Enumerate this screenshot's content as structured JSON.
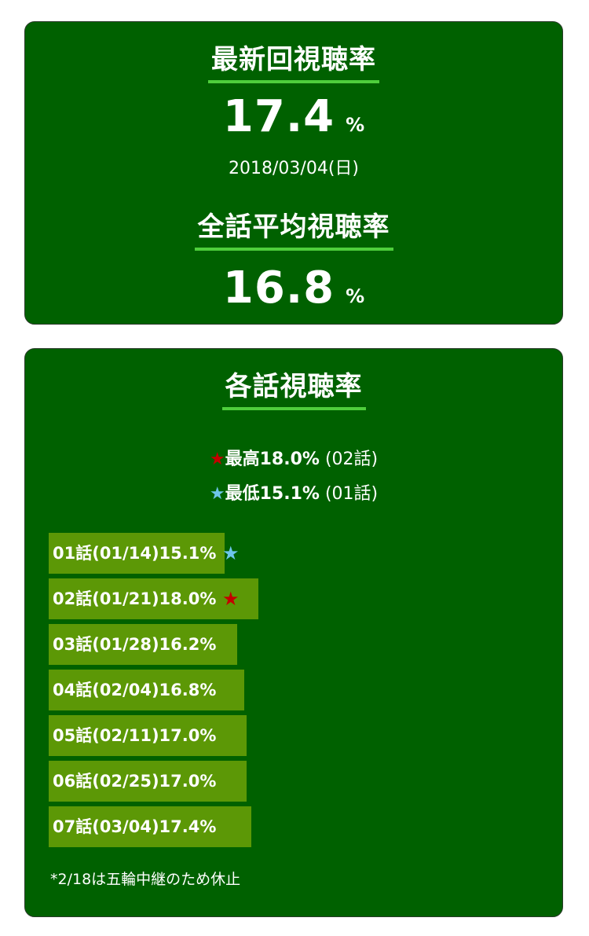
{
  "latest": {
    "heading": "最新回視聴率",
    "value": "17.4",
    "unit": "%",
    "date": "2018/03/04(日)"
  },
  "average": {
    "heading": "全話平均視聴率",
    "value": "16.8",
    "unit": "%"
  },
  "episodes_section": {
    "heading": "各話視聴率",
    "max_star": "★",
    "max_text": "最高18.0%",
    "max_episode": "(02話)",
    "min_star": "★",
    "min_text": "最低15.1%",
    "min_episode": "(01話)",
    "footnote": "*2/18は五輪中継のため休止"
  },
  "colors": {
    "card_bg": "#006100",
    "bar": "#5c9806",
    "underline": "#4ecf3c",
    "max_star": "#c40000",
    "min_star": "#6ec6ea"
  },
  "chart_data": {
    "type": "bar",
    "orientation": "horizontal",
    "title": "各話視聴率",
    "categories": [
      "01話(01/14)",
      "02話(01/21)",
      "03話(01/28)",
      "04話(02/04)",
      "05話(02/11)",
      "06話(02/25)",
      "07話(03/04)"
    ],
    "labels": [
      "01話(01/14)15.1%",
      "02話(01/21)18.0%",
      "03話(01/28)16.2%",
      "04話(02/04)16.8%",
      "05話(02/11)17.0%",
      "06話(02/25)17.0%",
      "07話(03/04)17.4%"
    ],
    "values": [
      15.1,
      18.0,
      16.2,
      16.8,
      17.0,
      17.0,
      17.4
    ],
    "unit": "%",
    "markers": [
      "min",
      "max",
      null,
      null,
      null,
      null,
      null
    ],
    "xlim": [
      0,
      42.5
    ],
    "grid": false,
    "legend": "none"
  }
}
